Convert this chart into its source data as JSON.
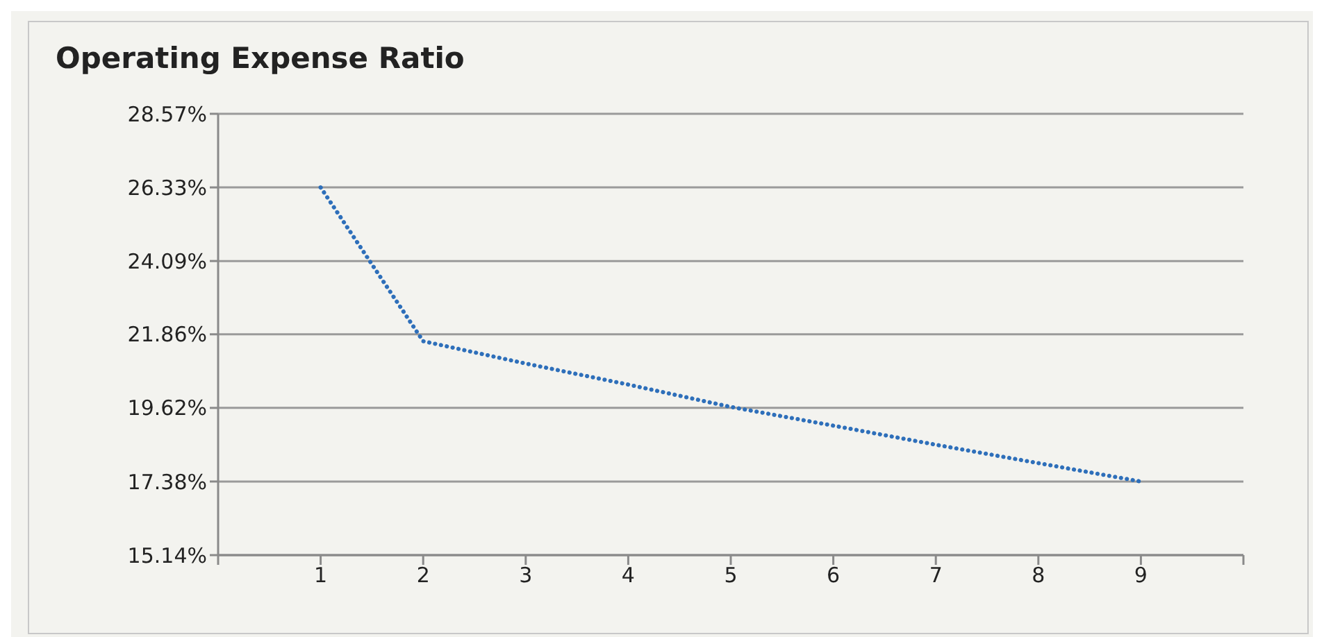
{
  "chart_data": {
    "type": "line",
    "title": "Operating Expense Ratio",
    "x": [
      1,
      2,
      3,
      4,
      5,
      6,
      7,
      8,
      9
    ],
    "series": [
      {
        "color": "#2e6fba",
        "values": [
          26.33,
          21.65,
          20.97,
          20.33,
          19.65,
          19.08,
          18.5,
          17.94,
          17.38
        ]
      }
    ],
    "xlim": [
      0,
      10
    ],
    "xticks": [
      {
        "value": 0,
        "label": null
      },
      1,
      2,
      3,
      4,
      5,
      6,
      7,
      8,
      9,
      {
        "value": 10,
        "label": null
      }
    ],
    "ylim": [
      15.14,
      28.57
    ],
    "yticks": [
      {
        "value": 15.14,
        "label": "15.14%"
      },
      {
        "value": 17.38,
        "label": "17.38%"
      },
      {
        "value": 19.62,
        "label": "19.62%"
      },
      {
        "value": 21.86,
        "label": "21.86%"
      },
      {
        "value": 24.09,
        "label": "24.09%"
      },
      {
        "value": 26.33,
        "label": "26.33%"
      },
      {
        "value": 28.57,
        "label": "28.57%"
      }
    ],
    "grid": "y",
    "legend": false,
    "marker": "none",
    "line_style": "dotted"
  }
}
